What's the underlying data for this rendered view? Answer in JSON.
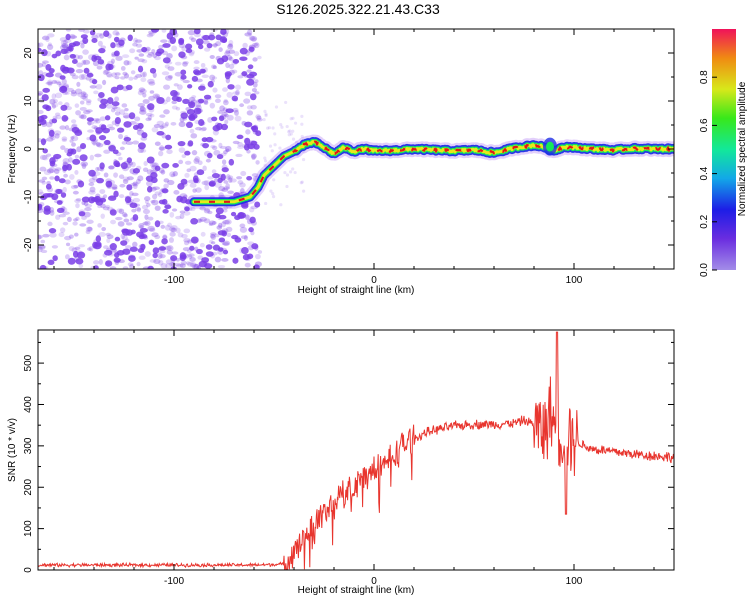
{
  "title": "S126.2025.322.21.43.C33",
  "colors": {
    "snr_line": "#e8352e",
    "scatter": "#7a3ee6",
    "trace_core": "#e01818",
    "trace_mid": "#14e85a",
    "trace_outer": "#1f2ee6",
    "trace_halo": "#8a3ef0"
  },
  "chart_data": [
    {
      "type": "heatmap",
      "name": "spectrogram",
      "xlabel": "Height of straight line (km)",
      "ylabel": "Frequency (Hz)",
      "xlim": [
        -168,
        150
      ],
      "ylim": [
        -25,
        25
      ],
      "xticks": [
        -100,
        0,
        100
      ],
      "yticks": [
        -20,
        -10,
        0,
        10,
        20
      ],
      "colorbar": {
        "label": "Normalized spectral amplitude",
        "range": [
          0.0,
          1.0
        ],
        "ticks": [
          "0.0",
          "0.2",
          "0.4",
          "0.6",
          "0.8"
        ],
        "colormap": "rainbow"
      },
      "noise_region_x": [
        -168,
        -55
      ],
      "ridge": {
        "x": [
          -90,
          -80,
          -70,
          -62,
          -58,
          -55,
          -50,
          -45,
          -40,
          -35,
          -30,
          -25,
          -20,
          -15,
          -10,
          -5,
          0,
          10,
          20,
          30,
          40,
          50,
          60,
          70,
          80,
          85,
          90,
          95,
          100,
          110,
          120,
          130,
          140,
          150
        ],
        "y": [
          -11,
          -11,
          -11,
          -10,
          -8,
          -5.5,
          -3.5,
          -1.5,
          -0.5,
          0.8,
          1.5,
          0.3,
          -1,
          0.3,
          -0.5,
          0,
          -0.4,
          -0.3,
          0,
          -0.2,
          -0.4,
          -0.2,
          -0.8,
          0.2,
          0.8,
          0.4,
          -0.4,
          0.5,
          0.3,
          0,
          -0.2,
          0.1,
          0,
          0
        ]
      }
    },
    {
      "type": "line",
      "name": "snr",
      "xlabel": "Height of straight line (km)",
      "ylabel": "SNR (10 * v/v)",
      "xlim": [
        -168,
        150
      ],
      "ylim": [
        0,
        580
      ],
      "xticks": [
        -100,
        0,
        100
      ],
      "yticks": [
        0,
        100,
        200,
        300,
        400,
        500
      ],
      "series": [
        {
          "name": "SNR",
          "x": [
            -168,
            -140,
            -100,
            -80,
            -60,
            -45,
            -40,
            -35,
            -30,
            -25,
            -20,
            -15,
            -10,
            -5,
            0,
            5,
            10,
            15,
            20,
            25,
            30,
            40,
            50,
            60,
            70,
            75,
            80,
            85,
            88,
            90,
            92,
            95,
            98,
            100,
            105,
            110,
            120,
            130,
            140,
            150
          ],
          "y": [
            12,
            12,
            12,
            12,
            12,
            14,
            40,
            80,
            110,
            140,
            160,
            185,
            205,
            225,
            240,
            255,
            275,
            305,
            315,
            330,
            338,
            348,
            352,
            352,
            355,
            362,
            352,
            335,
            380,
            350,
            330,
            320,
            330,
            318,
            300,
            292,
            286,
            280,
            276,
            272
          ]
        }
      ]
    }
  ]
}
